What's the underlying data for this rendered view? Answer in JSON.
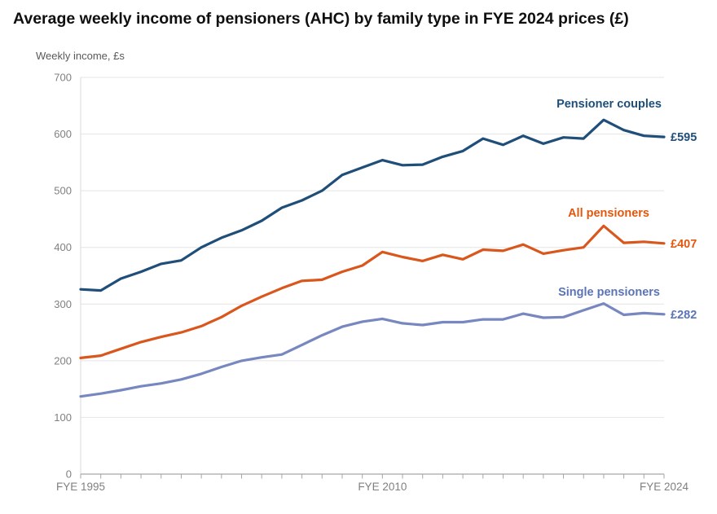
{
  "title": "Average weekly income of pensioners (AHC) by family type in FYE 2024 prices (£)",
  "y_axis_title": "Weekly income, £s",
  "colors": {
    "couples_line": "#1f4e79",
    "couples_text": "#1f4e79",
    "all_line": "#d9571c",
    "all_text": "#e2570e",
    "single_line": "#7787bf",
    "single_text": "#5b74b7",
    "gridline": "#e4e4e4",
    "x_axis": "#a6a6a6",
    "y_axis": "#d9d9d9",
    "tick_label": "#808080",
    "title_color": "#0f0f0f"
  },
  "chart_data": {
    "type": "line",
    "x": [
      1995,
      1996,
      1997,
      1998,
      1999,
      2000,
      2001,
      2002,
      2003,
      2004,
      2005,
      2006,
      2007,
      2008,
      2009,
      2010,
      2011,
      2012,
      2013,
      2014,
      2015,
      2016,
      2017,
      2018,
      2019,
      2020,
      2021,
      2022,
      2023,
      2024
    ],
    "x_unit": "FYE (financial year ending)",
    "ylim": [
      0,
      700
    ],
    "yticks": [
      0,
      100,
      200,
      300,
      400,
      500,
      600,
      700
    ],
    "grid": "horizontal",
    "legend_position": "direct-labels-right",
    "x_axis_labels": [
      {
        "text": "FYE 1995",
        "year": 1995
      },
      {
        "text": "FYE 2010",
        "year": 2010
      },
      {
        "text": "FYE 2024",
        "year": 2024
      }
    ],
    "series": [
      {
        "name": "Pensioner couples",
        "end_label": "£595",
        "color_key": "couples",
        "label_pos": [
          812,
          132
        ],
        "values": [
          326,
          324,
          345,
          357,
          371,
          377,
          400,
          417,
          430,
          447,
          470,
          483,
          500,
          528,
          541,
          554,
          545,
          546,
          560,
          570,
          592,
          581,
          597,
          583,
          594,
          592,
          625,
          607,
          597,
          595
        ]
      },
      {
        "name": "All pensioners",
        "end_label": "£407",
        "color_key": "all",
        "label_pos": [
          797,
          266
        ],
        "values": [
          205,
          209,
          221,
          233,
          242,
          250,
          261,
          277,
          297,
          313,
          328,
          341,
          343,
          357,
          368,
          392,
          383,
          376,
          387,
          379,
          396,
          394,
          405,
          389,
          395,
          400,
          438,
          408,
          410,
          407
        ]
      },
      {
        "name": "Single pensioners",
        "end_label": "£282",
        "color_key": "single",
        "label_pos": [
          810,
          363
        ],
        "values": [
          137,
          142,
          148,
          155,
          160,
          167,
          177,
          189,
          200,
          206,
          211,
          228,
          245,
          260,
          269,
          274,
          266,
          263,
          268,
          268,
          273,
          273,
          283,
          276,
          277,
          289,
          301,
          281,
          284,
          282
        ]
      }
    ]
  }
}
